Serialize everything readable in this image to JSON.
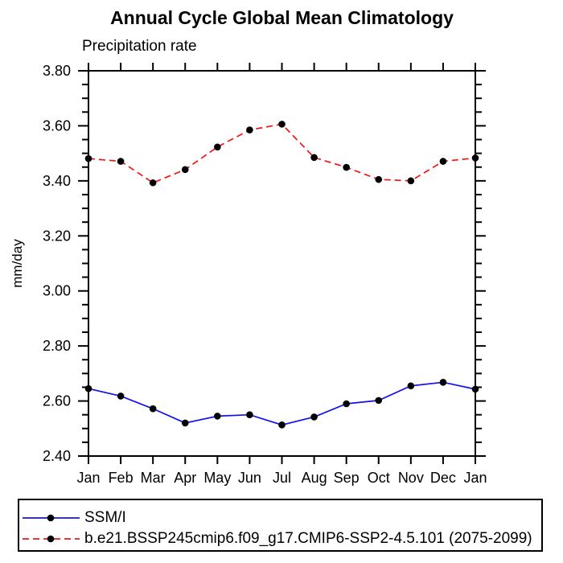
{
  "chart_data": {
    "type": "line",
    "title": "Annual Cycle Global Mean Climatology",
    "subtitle": "Precipitation rate",
    "ylabel": "mm/day",
    "categories": [
      "Jan",
      "Feb",
      "Mar",
      "Apr",
      "May",
      "Jun",
      "Jul",
      "Aug",
      "Sep",
      "Oct",
      "Nov",
      "Dec",
      "Jan"
    ],
    "ylim": [
      2.4,
      3.8
    ],
    "ytick_major_step": 0.2,
    "ytick_minor_step": 0.05,
    "ytick_labels": [
      "2.40",
      "2.60",
      "2.80",
      "3.00",
      "3.20",
      "3.40",
      "3.60",
      "3.80"
    ],
    "grid": false,
    "legend_position": "bottom-left",
    "axis_color": "#000000",
    "series": [
      {
        "name": "SSM/I",
        "color": "#1212ee",
        "line_style": "solid",
        "marker": "circle",
        "marker_color": "#000000",
        "values": [
          2.645,
          2.618,
          2.572,
          2.52,
          2.545,
          2.55,
          2.513,
          2.542,
          2.59,
          2.602,
          2.655,
          2.668,
          2.643
        ]
      },
      {
        "name": "b.e21.BSSP245cmip6.f09_g17.CMIP6-SSP2-4.5.101 (2075-2099)",
        "color": "#f51414",
        "line_style": "dashed",
        "marker": "circle",
        "marker_color": "#000000",
        "values": [
          3.481,
          3.471,
          3.393,
          3.441,
          3.523,
          3.585,
          3.606,
          3.485,
          3.449,
          3.405,
          3.4,
          3.471,
          3.483
        ]
      }
    ]
  }
}
